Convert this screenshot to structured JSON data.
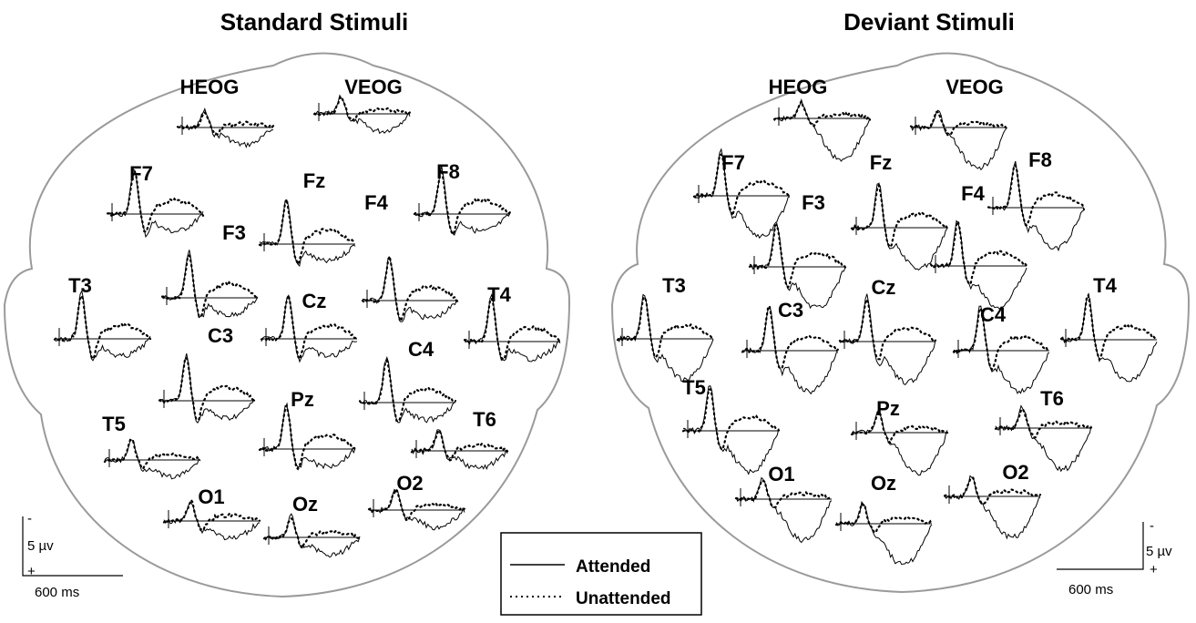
{
  "panels": [
    {
      "title": "Standard Stimuli",
      "electrodes": [
        "HEOG",
        "VEOG",
        "F7",
        "Fz",
        "F8",
        "F3",
        "F4",
        "T3",
        "Cz",
        "T4",
        "C3",
        "C4",
        "Pz",
        "T5",
        "T6",
        "O1",
        "Oz",
        "O2"
      ],
      "scale": {
        "negative": "-",
        "amplitude": "5 µv",
        "positive": "+",
        "time": "600 ms"
      }
    },
    {
      "title": "Deviant Stimuli",
      "electrodes": [
        "HEOG",
        "VEOG",
        "F7",
        "Fz",
        "F8",
        "F3",
        "F4",
        "T3",
        "C3",
        "Cz",
        "C4",
        "T4",
        "T5",
        "T6",
        "Pz",
        "O1",
        "Oz",
        "O2"
      ],
      "scale": {
        "negative": "-",
        "amplitude": "5 µv",
        "positive": "+",
        "time": "600 ms"
      }
    }
  ],
  "legend": {
    "items": [
      "Attended",
      "Unattended"
    ]
  }
}
